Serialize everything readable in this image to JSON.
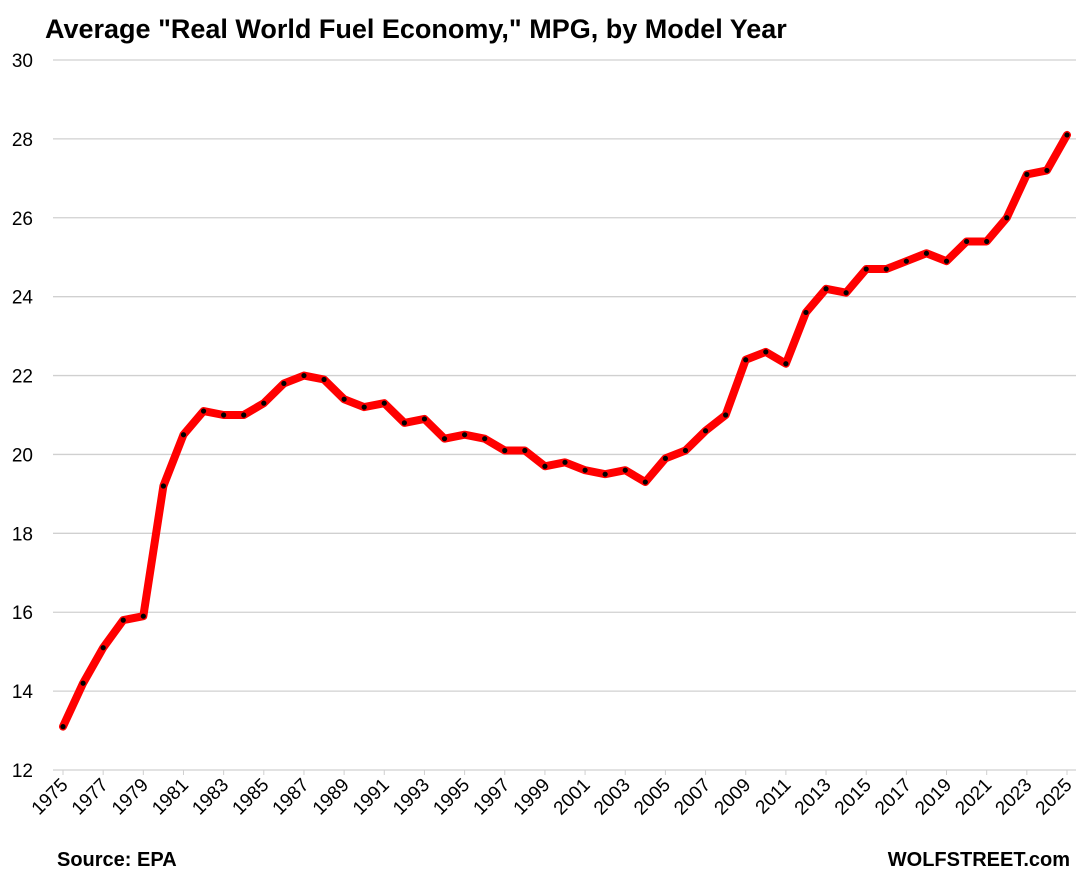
{
  "chart_data": {
    "type": "line",
    "title": "Average \"Real World Fuel Economy,\" MPG, by Model Year",
    "source": "Source: EPA",
    "credit": "WOLFSTREET.com",
    "x": [
      1975,
      1976,
      1977,
      1978,
      1979,
      1980,
      1981,
      1982,
      1983,
      1984,
      1985,
      1986,
      1987,
      1988,
      1989,
      1990,
      1991,
      1992,
      1993,
      1994,
      1995,
      1996,
      1997,
      1998,
      1999,
      2000,
      2001,
      2002,
      2003,
      2004,
      2005,
      2006,
      2007,
      2008,
      2009,
      2010,
      2011,
      2012,
      2013,
      2014,
      2015,
      2016,
      2017,
      2018,
      2019,
      2020,
      2021,
      2022,
      2023,
      2024,
      2025
    ],
    "series": [
      {
        "color": "#ff0000",
        "marker_color": "#000000",
        "values": [
          13.1,
          14.2,
          15.1,
          15.8,
          15.9,
          19.2,
          20.5,
          21.1,
          21.0,
          21.0,
          21.3,
          21.8,
          22.0,
          21.9,
          21.4,
          21.2,
          21.3,
          20.8,
          20.9,
          20.4,
          20.5,
          20.4,
          20.1,
          20.1,
          19.7,
          19.8,
          19.6,
          19.5,
          19.6,
          19.3,
          19.9,
          20.1,
          20.6,
          21.0,
          22.4,
          22.6,
          22.3,
          23.6,
          24.2,
          24.1,
          24.7,
          24.7,
          24.9,
          25.1,
          24.9,
          25.4,
          25.4,
          26.0,
          27.1,
          27.2,
          28.1
        ]
      }
    ],
    "xlim": [
      1975,
      2025
    ],
    "xticks": [
      1975,
      1977,
      1979,
      1981,
      1983,
      1985,
      1987,
      1989,
      1991,
      1993,
      1995,
      1997,
      1999,
      2001,
      2003,
      2005,
      2007,
      2009,
      2011,
      2013,
      2015,
      2017,
      2019,
      2021,
      2023,
      2025
    ],
    "ylim": [
      12,
      30
    ],
    "yticks": [
      12,
      14,
      16,
      18,
      20,
      22,
      24,
      26,
      28,
      30
    ],
    "grid": true
  }
}
